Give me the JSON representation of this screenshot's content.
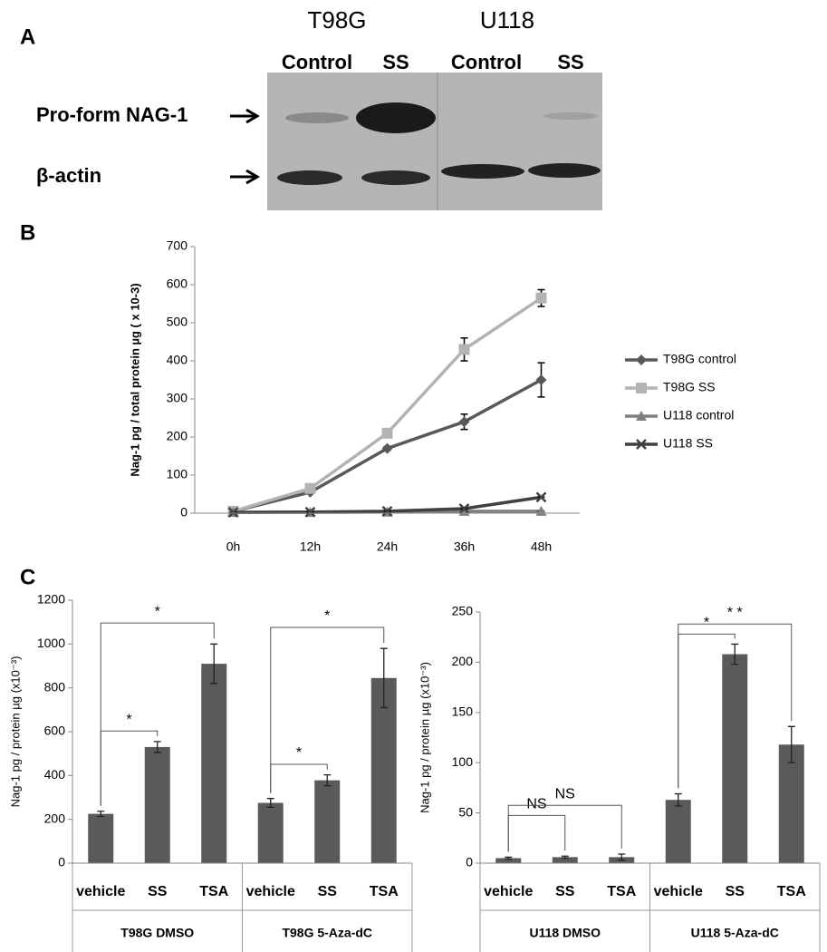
{
  "panel_labels": [
    "A",
    "B",
    "C"
  ],
  "panel_a": {
    "cell_lines": [
      "T98G",
      "U118"
    ],
    "lanes": [
      "Control",
      "SS",
      "Control",
      "SS"
    ],
    "rows": [
      "Pro-form NAG-1",
      "β-actin"
    ]
  },
  "chart_data": [
    {
      "type": "line",
      "y_label": "Nag-1 pg / total protein µg ( x 10-3)",
      "categories": [
        "0h",
        "12h",
        "24h",
        "36h",
        "48h"
      ],
      "ylim": [
        0,
        700
      ],
      "yticks": [
        0,
        100,
        200,
        300,
        400,
        500,
        600,
        700
      ],
      "legend": "right",
      "series": [
        {
          "name": "T98G control",
          "color": "#595959",
          "marker": "diamond",
          "values": [
            5,
            55,
            170,
            240,
            350
          ],
          "errors": [
            0,
            0,
            5,
            20,
            45
          ]
        },
        {
          "name": "T98G SS",
          "color": "#b3b3b3",
          "marker": "square",
          "values": [
            5,
            65,
            210,
            430,
            565
          ],
          "errors": [
            0,
            5,
            5,
            30,
            22
          ]
        },
        {
          "name": "U118 control",
          "color": "#808080",
          "marker": "triangle",
          "values": [
            2,
            2,
            3,
            5,
            5
          ],
          "errors": [
            0,
            0,
            0,
            0,
            0
          ]
        },
        {
          "name": "U118 SS",
          "color": "#404040",
          "marker": "x",
          "values": [
            2,
            3,
            5,
            12,
            42
          ],
          "errors": [
            0,
            0,
            0,
            0,
            0
          ]
        }
      ]
    },
    {
      "type": "bar",
      "y_label": "Nag-1 pg / protein µg (x10⁻³)",
      "color": "#5a5a5a",
      "categories": [
        "vehicle",
        "SS",
        "TSA",
        "vehicle",
        "SS",
        "TSA"
      ],
      "groups": [
        "T98G DMSO",
        "T98G 5-Aza-dC"
      ],
      "values": [
        225,
        530,
        910,
        275,
        378,
        845
      ],
      "errors": [
        12,
        25,
        90,
        20,
        25,
        135
      ],
      "ylim": [
        0,
        1200
      ],
      "yticks": [
        0,
        200,
        400,
        600,
        800,
        1000,
        1200
      ],
      "brackets": [
        {
          "from": 0,
          "to": 1,
          "label": "*"
        },
        {
          "from": 0,
          "to": 2,
          "label": "*"
        },
        {
          "from": 3,
          "to": 4,
          "label": "*"
        },
        {
          "from": 3,
          "to": 5,
          "label": "*"
        }
      ]
    },
    {
      "type": "bar",
      "y_label": "Nag-1 pg / protein µg (x10⁻³)",
      "color": "#5a5a5a",
      "categories": [
        "vehicle",
        "SS",
        "TSA",
        "vehicle",
        "SS",
        "TSA"
      ],
      "groups": [
        "U118 DMSO",
        "U118 5-Aza-dC"
      ],
      "values": [
        5,
        6,
        6,
        63,
        208,
        118
      ],
      "errors": [
        1,
        1,
        3,
        6,
        10,
        18
      ],
      "ylim": [
        0,
        250
      ],
      "yticks": [
        0,
        50,
        100,
        150,
        200,
        250
      ],
      "brackets": [
        {
          "from": 0,
          "to": 1,
          "label": "NS"
        },
        {
          "from": 0,
          "to": 2,
          "label": "NS"
        },
        {
          "from": 3,
          "to": 4,
          "label": "*"
        },
        {
          "from": 3,
          "to": 5,
          "label": "* *"
        }
      ]
    }
  ]
}
